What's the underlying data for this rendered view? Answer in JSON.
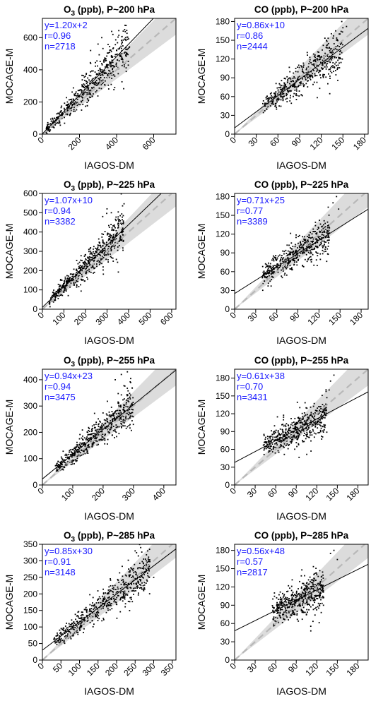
{
  "x_axis_label": "IAGOS-DM",
  "y_axis_label": "MOCAGE-M",
  "chart_data": [
    {
      "type": "scatter",
      "title_species": "O3",
      "title_rest": " (ppb), P~200 hPa",
      "xlim": [
        0,
        720
      ],
      "ylim": [
        0,
        720
      ],
      "ticks": [
        0,
        200,
        400,
        600
      ],
      "slope": 1.2,
      "intercept": 2,
      "fit_label": "y=1.20x+2",
      "r_label": "r=0.96",
      "n_label": "n=2718",
      "cloud": {
        "xmin": 20,
        "xmax": 470,
        "spread": 0.16,
        "count": 520,
        "extras": [
          [
            300,
            560
          ],
          [
            320,
            600
          ],
          [
            260,
            520
          ],
          [
            380,
            620
          ]
        ]
      }
    },
    {
      "type": "scatter",
      "title_species": "CO",
      "title_rest": " (ppb), P~200 hPa",
      "xlim": [
        0,
        185
      ],
      "ylim": [
        0,
        185
      ],
      "ticks": [
        0,
        30,
        60,
        90,
        120,
        150,
        180
      ],
      "slope": 0.86,
      "intercept": 10,
      "fit_label": "y=0.86x+10",
      "r_label": "r=0.86",
      "n_label": "n=2444",
      "cloud": {
        "xmin": 38,
        "xmax": 150,
        "spread": 0.14,
        "count": 480,
        "extras": [
          [
            140,
            165
          ],
          [
            150,
            170
          ],
          [
            146,
            160
          ],
          [
            155,
            172
          ]
        ]
      }
    },
    {
      "type": "scatter",
      "title_species": "O3",
      "title_rest": " (ppb), P~225 hPa",
      "xlim": [
        0,
        620
      ],
      "ylim": [
        0,
        600
      ],
      "ticks": [
        0,
        100,
        200,
        300,
        400,
        500,
        600
      ],
      "slope": 1.07,
      "intercept": 10,
      "fit_label": "y=1.07x+10",
      "r_label": "r=0.94",
      "n_label": "n=3382",
      "cloud": {
        "xmin": 30,
        "xmax": 380,
        "spread": 0.15,
        "count": 560,
        "extras": [
          [
            300,
            520
          ],
          [
            280,
            480
          ],
          [
            320,
            500
          ]
        ]
      }
    },
    {
      "type": "scatter",
      "title_species": "CO",
      "title_rest": " (ppb), P~225 hPa",
      "xlim": [
        0,
        190
      ],
      "ylim": [
        0,
        185
      ],
      "ticks": [
        0,
        30,
        60,
        90,
        120,
        150,
        180
      ],
      "slope": 0.71,
      "intercept": 25,
      "fit_label": "y=0.71x+25",
      "r_label": "r=0.77",
      "n_label": "n=3389",
      "cloud": {
        "xmin": 38,
        "xmax": 135,
        "spread": 0.13,
        "count": 500,
        "extras": [
          [
            140,
            170
          ],
          [
            145,
            180
          ],
          [
            148,
            160
          ]
        ]
      }
    },
    {
      "type": "scatter",
      "title_species": "O3",
      "title_rest": " (ppb), P~255 hPa",
      "xlim": [
        0,
        440
      ],
      "ylim": [
        0,
        440
      ],
      "ticks": [
        0,
        100,
        200,
        300,
        400
      ],
      "slope": 0.94,
      "intercept": 23,
      "fit_label": "y=0.94x+23",
      "r_label": "r=0.94",
      "n_label": "n=3475",
      "cloud": {
        "xmin": 40,
        "xmax": 300,
        "spread": 0.14,
        "count": 560,
        "extras": [
          [
            260,
            420
          ],
          [
            240,
            400
          ],
          [
            280,
            430
          ]
        ]
      }
    },
    {
      "type": "scatter",
      "title_species": "CO",
      "title_rest": " (ppb), P~255 hPa",
      "xlim": [
        0,
        195
      ],
      "ylim": [
        0,
        195
      ],
      "ticks": [
        0,
        30,
        60,
        90,
        120,
        150,
        180
      ],
      "slope": 0.61,
      "intercept": 38,
      "fit_label": "y=0.61x+38",
      "r_label": "r=0.70",
      "n_label": "n=3431",
      "cloud": {
        "xmin": 42,
        "xmax": 135,
        "spread": 0.13,
        "count": 520,
        "extras": [
          [
            140,
            175
          ],
          [
            145,
            185
          ],
          [
            138,
            160
          ]
        ]
      }
    },
    {
      "type": "scatter",
      "title_species": "O3",
      "title_rest": " (ppb), P~285 hPa",
      "xlim": [
        0,
        360
      ],
      "ylim": [
        0,
        350
      ],
      "ticks": [
        0,
        50,
        100,
        150,
        200,
        250,
        300,
        350
      ],
      "slope": 0.85,
      "intercept": 30,
      "fit_label": "y=0.85x+30",
      "r_label": "r=0.91",
      "n_label": "n=3148",
      "cloud": {
        "xmin": 30,
        "xmax": 290,
        "spread": 0.13,
        "count": 560,
        "extras": [
          [
            250,
            330
          ],
          [
            265,
            340
          ],
          [
            280,
            300
          ],
          [
            300,
            250
          ]
        ]
      }
    },
    {
      "type": "scatter",
      "title_species": "CO",
      "title_rest": " (ppb), P~285 hPa",
      "xlim": [
        0,
        195
      ],
      "ylim": [
        0,
        190
      ],
      "ticks": [
        0,
        30,
        60,
        90,
        120,
        150,
        180
      ],
      "slope": 0.56,
      "intercept": 48,
      "fit_label": "y=0.56x+48",
      "r_label": "r=0.57",
      "n_label": "n=2817",
      "cloud": {
        "xmin": 55,
        "xmax": 130,
        "spread": 0.14,
        "count": 480,
        "extras": [
          [
            140,
            175
          ],
          [
            145,
            180
          ],
          [
            150,
            165
          ]
        ]
      }
    }
  ]
}
